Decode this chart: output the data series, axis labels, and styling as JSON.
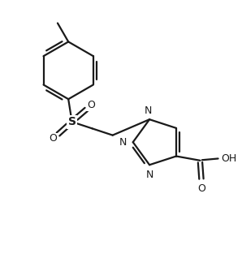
{
  "bg_color": "#ffffff",
  "line_color": "#1a1a1a",
  "line_width": 1.6,
  "figsize": [
    2.98,
    3.18
  ],
  "dpi": 100,
  "xlim": [
    0,
    10
  ],
  "ylim": [
    0,
    10.7
  ]
}
